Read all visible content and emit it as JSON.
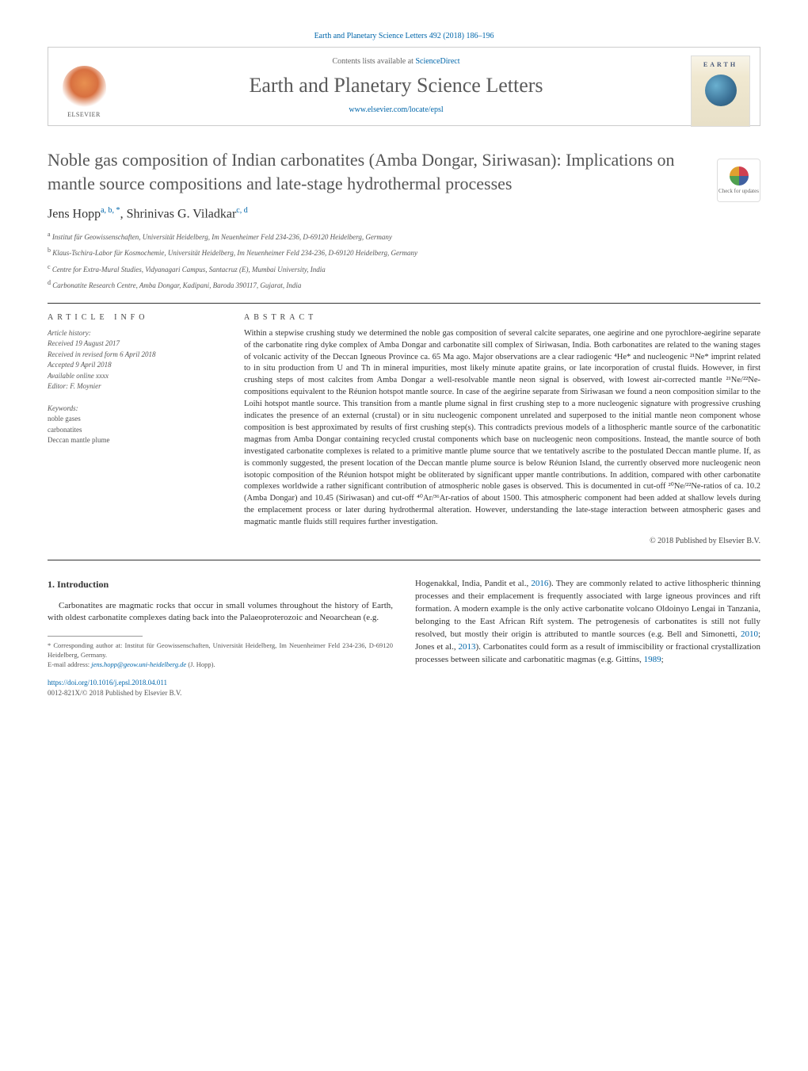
{
  "header": {
    "citation": "Earth and Planetary Science Letters 492 (2018) 186–196",
    "contents_prefix": "Contents lists available at ",
    "contents_link": "ScienceDirect",
    "journal_title": "Earth and Planetary Science Letters",
    "journal_url": "www.elsevier.com/locate/epsl",
    "elsevier_label": "ELSEVIER",
    "cover_label": "EARTH"
  },
  "article": {
    "title": "Noble gas composition of Indian carbonatites (Amba Dongar, Siriwasan): Implications on mantle source compositions and late-stage hydrothermal processes",
    "check_updates": "Check for updates",
    "authors_html": "Jens Hopp",
    "author1": "Jens Hopp",
    "author1_sup": "a, b, *",
    "author_sep": ", ",
    "author2": "Shrinivas G. Viladkar",
    "author2_sup": "c, d",
    "affiliations": {
      "a": "Institut für Geowissenschaften, Universität Heidelberg, Im Neuenheimer Feld 234-236, D-69120 Heidelberg, Germany",
      "b": "Klaus-Tschira-Labor für Kosmochemie, Universität Heidelberg, Im Neuenheimer Feld 234-236, D-69120 Heidelberg, Germany",
      "c": "Centre for Extra-Mural Studies, Vidyanagari Campus, Santacruz (E), Mumbai University, India",
      "d": "Carbonatite Research Centre, Amba Dongar, Kadipani, Baroda 390117, Gujarat, India"
    }
  },
  "info": {
    "heading": "ARTICLE INFO",
    "history_label": "Article history:",
    "received": "Received 19 August 2017",
    "revised": "Received in revised form 6 April 2018",
    "accepted": "Accepted 9 April 2018",
    "available": "Available online xxxx",
    "editor": "Editor: F. Moynier",
    "keywords_label": "Keywords:",
    "keywords": [
      "noble gases",
      "carbonatites",
      "Deccan mantle plume"
    ]
  },
  "abstract": {
    "heading": "ABSTRACT",
    "text": "Within a stepwise crushing study we determined the noble gas composition of several calcite separates, one aegirine and one pyrochlore-aegirine separate of the carbonatite ring dyke complex of Amba Dongar and carbonatite sill complex of Siriwasan, India. Both carbonatites are related to the waning stages of volcanic activity of the Deccan Igneous Province ca. 65 Ma ago. Major observations are a clear radiogenic ⁴He* and nucleogenic ²¹Ne* imprint related to in situ production from U and Th in mineral impurities, most likely minute apatite grains, or late incorporation of crustal fluids. However, in first crushing steps of most calcites from Amba Dongar a well-resolvable mantle neon signal is observed, with lowest air-corrected mantle ²¹Ne/²²Ne-compositions equivalent to the Réunion hotspot mantle source. In case of the aegirine separate from Siriwasan we found a neon composition similar to the Loihi hotspot mantle source. This transition from a mantle plume signal in first crushing step to a more nucleogenic signature with progressive crushing indicates the presence of an external (crustal) or in situ nucleogenic component unrelated and superposed to the initial mantle neon component whose composition is best approximated by results of first crushing step(s). This contradicts previous models of a lithospheric mantle source of the carbonatitic magmas from Amba Dongar containing recycled crustal components which base on nucleogenic neon compositions. Instead, the mantle source of both investigated carbonatite complexes is related to a primitive mantle plume source that we tentatively ascribe to the postulated Deccan mantle plume. If, as is commonly suggested, the present location of the Deccan mantle plume source is below Réunion Island, the currently observed more nucleogenic neon isotopic composition of the Réunion hotspot might be obliterated by significant upper mantle contributions. In addition, compared with other carbonatite complexes worldwide a rather significant contribution of atmospheric noble gases is observed. This is documented in cut-off ²⁰Ne/²²Ne-ratios of ca. 10.2 (Amba Dongar) and 10.45 (Siriwasan) and cut-off ⁴⁰Ar/³⁶Ar-ratios of about 1500. This atmospheric component had been added at shallow levels during the emplacement process or later during hydrothermal alteration. However, understanding the late-stage interaction between atmospheric gases and magmatic mantle fluids still requires further investigation.",
    "copyright": "© 2018 Published by Elsevier B.V."
  },
  "body": {
    "section_heading": "1. Introduction",
    "col1_p1": "Carbonatites are magmatic rocks that occur in small volumes throughout the history of Earth, with oldest carbonatite complexes dating back into the Palaeoproterozoic and Neoarchean (e.g.",
    "col2_p1_a": "Hogenakkal, India, Pandit et al., ",
    "col2_ref1": "2016",
    "col2_p1_b": "). They are commonly related to active lithospheric thinning processes and their emplacement is frequently associated with large igneous provinces and rift formation. A modern example is the only active carbonatite volcano Oldoinyo Lengai in Tanzania, belonging to the East African Rift system. The petrogenesis of carbonatites is still not fully resolved, but mostly their origin is attributed to mantle sources (e.g. Bell and Simonetti, ",
    "col2_ref2": "2010",
    "col2_p1_c": "; Jones et al., ",
    "col2_ref3": "2013",
    "col2_p1_d": "). Carbonatites could form as a result of immiscibility or fractional crystallization processes between silicate and carbonatitic magmas (e.g. Gittins, ",
    "col2_ref4": "1989",
    "col2_p1_e": ";"
  },
  "footnote": {
    "corresponding": "* Corresponding author at: Institut für Geowissenschaften, Universität Heidelberg, Im Neuenheimer Feld 234-236, D-69120 Heidelberg, Germany.",
    "email_label": "E-mail address: ",
    "email": "jens.hopp@geow.uni-heidelberg.de",
    "email_suffix": " (J. Hopp)."
  },
  "footer": {
    "doi": "https://doi.org/10.1016/j.epsl.2018.04.011",
    "issn": "0012-821X/© 2018 Published by Elsevier B.V."
  },
  "colors": {
    "link": "#0066aa",
    "text": "#333333",
    "heading_gray": "#555555",
    "border": "#cccccc"
  }
}
